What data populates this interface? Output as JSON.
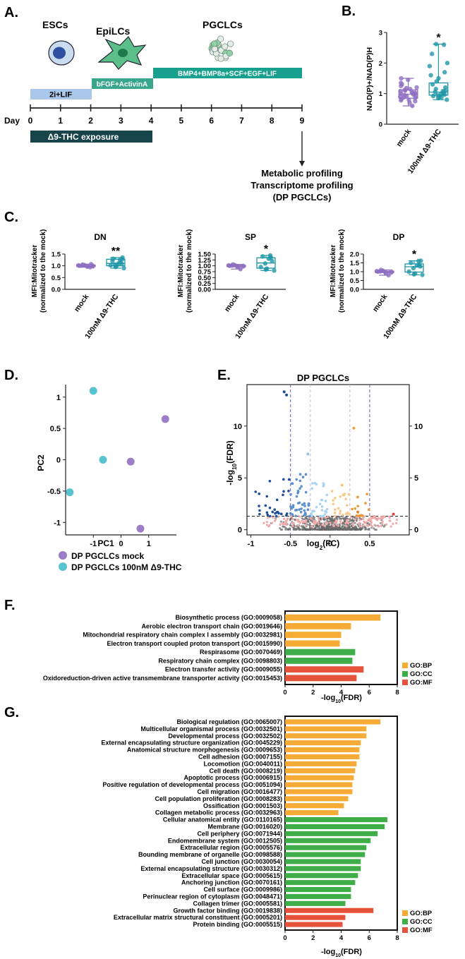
{
  "panelA": {
    "label": "A.",
    "stages": {
      "esc": "ESCs",
      "epilc": "EpiLCs",
      "pgclc": "PGCLCs"
    },
    "bars": {
      "lif": "2i+LIF",
      "bfgf": "bFGF+ActivinA",
      "bmp": "BMP4+BMP8a+SCF+EGF+LIF",
      "thc": "Δ9-THC exposure"
    },
    "day_label": "Day",
    "days": [
      "0",
      "1",
      "2",
      "3",
      "4",
      "5",
      "6",
      "7",
      "8",
      "9"
    ],
    "out1": "Metabolic profiling",
    "out2": "Transcriptome profiling",
    "out3": "(DP PGCLCs)",
    "colors": {
      "lif": "#a9c7e8",
      "bfgf": "#3aa58d",
      "bmp": "#18a08f",
      "thc": "#17434a"
    }
  },
  "panelB": {
    "label": "B.",
    "chart_data": {
      "type": "box",
      "ylabel": "NAD(P)+/NAD(P)H",
      "ylim": [
        0,
        3
      ],
      "yticks": [
        "0",
        "1",
        "2",
        "3"
      ],
      "categories": [
        "mock",
        "100nM Δ9-THC"
      ],
      "boxes": [
        {
          "whisker_low": 0.6,
          "q1": 0.85,
          "median": 0.98,
          "q3": 1.12,
          "whisker_high": 1.5
        },
        {
          "whisker_low": 0.8,
          "q1": 0.95,
          "median": 1.05,
          "q3": 1.35,
          "whisker_high": 2.62
        }
      ],
      "points": [
        [
          0.6,
          0.7,
          0.75,
          0.8,
          0.82,
          0.85,
          0.88,
          0.9,
          0.92,
          0.95,
          0.97,
          1.0,
          1.0,
          1.02,
          1.05,
          1.08,
          1.1,
          1.12,
          1.15,
          1.2,
          1.25,
          1.3,
          1.35,
          1.45,
          1.5,
          0.78,
          0.93,
          1.03,
          1.18
        ],
        [
          0.8,
          0.85,
          0.9,
          0.92,
          0.95,
          0.97,
          1.0,
          1.02,
          1.05,
          1.08,
          1.1,
          1.15,
          1.2,
          1.3,
          1.4,
          1.5,
          1.6,
          1.7,
          1.9,
          2.0,
          2.3,
          2.6,
          2.62,
          0.88
        ]
      ],
      "significance": [
        "",
        "*"
      ],
      "colors": [
        "#8e6fc1",
        "#1e96a6"
      ]
    }
  },
  "panelC": {
    "label": "C.",
    "ylabel1": "MFI:Mitotracker",
    "ylabel2": "(normalized to the mock)",
    "charts": [
      {
        "type": "box",
        "title": "DN",
        "ylim": [
          0,
          1.5
        ],
        "yticks": [
          "0.0",
          "0.5",
          "1.0",
          "1.5"
        ],
        "categories": [
          "mock",
          "100nM Δ9-THC"
        ],
        "boxes": [
          {
            "whisker_low": 0.94,
            "q1": 0.97,
            "median": 1.0,
            "q3": 1.03,
            "whisker_high": 1.07
          },
          {
            "whisker_low": 0.9,
            "q1": 1.0,
            "median": 1.1,
            "q3": 1.28,
            "whisker_high": 1.35
          }
        ],
        "points": [
          [
            0.94,
            0.96,
            0.98,
            0.99,
            1.0,
            1.0,
            1.01,
            1.02,
            1.03,
            1.05,
            1.07
          ],
          [
            0.9,
            0.95,
            1.0,
            1.02,
            1.05,
            1.08,
            1.1,
            1.15,
            1.2,
            1.25,
            1.28,
            1.3,
            1.35
          ]
        ],
        "significance": [
          "",
          "**"
        ]
      },
      {
        "type": "box",
        "title": "SP",
        "ylim": [
          0,
          1.5
        ],
        "yticks": [
          "0.00",
          "0.25",
          "0.50",
          "0.75",
          "1.00",
          "1.25",
          "1.50"
        ],
        "categories": [
          "mock",
          "100nM Δ9-THC"
        ],
        "boxes": [
          {
            "whisker_low": 0.86,
            "q1": 0.96,
            "median": 1.0,
            "q3": 1.02,
            "whisker_high": 1.06
          },
          {
            "whisker_low": 0.8,
            "q1": 0.9,
            "median": 1.12,
            "q3": 1.34,
            "whisker_high": 1.44
          }
        ],
        "points": [
          [
            0.86,
            0.95,
            0.97,
            0.98,
            1.0,
            1.0,
            1.01,
            1.02,
            1.03,
            1.06
          ],
          [
            0.8,
            0.84,
            0.88,
            0.95,
            1.1,
            1.2,
            1.3,
            1.35,
            1.4,
            1.44
          ]
        ],
        "significance": [
          "",
          "*"
        ]
      },
      {
        "type": "box",
        "title": "DP",
        "ylim": [
          0,
          2
        ],
        "yticks": [
          "0.0",
          "0.5",
          "1.0",
          "1.5",
          "2.0"
        ],
        "categories": [
          "mock",
          "100nM Δ9-THC"
        ],
        "boxes": [
          {
            "whisker_low": 0.8,
            "q1": 0.95,
            "median": 1.0,
            "q3": 1.03,
            "whisker_high": 1.1
          },
          {
            "whisker_low": 0.82,
            "q1": 0.98,
            "median": 1.28,
            "q3": 1.44,
            "whisker_high": 1.62
          }
        ],
        "points": [
          [
            0.8,
            0.9,
            0.95,
            0.98,
            1.0,
            1.01,
            1.02,
            1.03,
            1.05,
            1.1
          ],
          [
            0.82,
            0.85,
            0.9,
            1.0,
            1.2,
            1.3,
            1.35,
            1.4,
            1.5,
            1.6,
            1.62
          ]
        ],
        "significance": [
          "",
          "*"
        ]
      }
    ]
  },
  "panelD": {
    "label": "D.",
    "chart_data": {
      "type": "scatter",
      "xlabel": "PC1",
      "ylabel": "PC2",
      "xlim": [
        -2,
        2
      ],
      "ylim": [
        -1.2,
        1.2
      ],
      "xticks": [
        -1,
        0,
        1
      ],
      "xtick_labels": [
        "-1",
        "0",
        "1"
      ],
      "yticks": [
        -1,
        -0.5,
        0,
        0.5,
        1
      ],
      "ytick_labels": [
        "-1",
        "-0.5",
        "0",
        "0.5",
        "1"
      ],
      "series": [
        {
          "name": "DP PGCLCs mock",
          "color": "#9b7dc8",
          "x": [
            1.6,
            0.35,
            0.7
          ],
          "y": [
            0.65,
            -0.03,
            -1.1
          ]
        },
        {
          "name": "DP PGCLCs 100nM Δ9-THC",
          "color": "#57c3cf",
          "x": [
            -1.0,
            -0.65,
            -1.85
          ],
          "y": [
            1.1,
            0.0,
            -0.52
          ]
        }
      ]
    }
  },
  "panelE": {
    "label": "E.",
    "chart_data": {
      "type": "scatter",
      "title": "DP PGCLCs",
      "xlabel": "log2(FC)",
      "ylabel": "-log10(FDR)",
      "xlim": [
        -1.05,
        1.0
      ],
      "ylim": [
        -0.5,
        14
      ],
      "xticks": [
        -1,
        -0.5,
        0,
        0.5
      ],
      "xtick_labels": [
        "-1",
        "-0.5",
        "0",
        "0.5"
      ],
      "yticks": [
        0,
        5,
        10
      ],
      "ytick_labels": [
        "0",
        "5",
        "10"
      ],
      "threshold_y": 1.3,
      "vlines": [
        -0.5,
        -0.25,
        0.25,
        0.5
      ],
      "highlight": [
        {
          "x": -0.55,
          "y": 13.0,
          "c": "#1f4e9a"
        },
        {
          "x": -0.58,
          "y": 13.3,
          "c": "#1f4e9a"
        },
        {
          "x": 0.3,
          "y": 9.8,
          "c": "#f0a040"
        },
        {
          "x": 0.15,
          "y": 4.3,
          "c": "#f5c070"
        },
        {
          "x": -0.28,
          "y": 7.3,
          "c": "#8cc6e8"
        },
        {
          "x": 0.8,
          "y": 1.5,
          "c": "#e54030"
        },
        {
          "x": 0.35,
          "y": 1.7,
          "c": "#e08020"
        }
      ]
    }
  },
  "panelF": {
    "label": "F.",
    "chart_data": {
      "type": "bar",
      "orientation": "horizontal",
      "xlabel": "-log10(FDR)",
      "xlim": [
        0,
        8
      ],
      "xticks": [
        "0",
        "2",
        "4",
        "6",
        "8"
      ],
      "categories": [
        "Biosynthetic process (GO:0009058)",
        "Aerobic electron transport chain (GO:0019646)",
        "Mitochondrial respiratory chain complex I assembly (GO:0032981)",
        "Electron transport coupled proton transport (GO:0015990)",
        "Respirasome (GO:0070469)",
        "Respiratory chain complex (GO:0098803)",
        "Electron transfer activity (GO:0009055)",
        "Oxidoreduction-driven active transmembrane transporter activity (GO:0015453)"
      ],
      "values": [
        6.8,
        4.7,
        4.0,
        3.9,
        5.0,
        4.8,
        5.6,
        5.1
      ],
      "groups": [
        "BP",
        "BP",
        "BP",
        "BP",
        "CC",
        "CC",
        "MF",
        "MF"
      ]
    }
  },
  "panelG": {
    "label": "G.",
    "chart_data": {
      "type": "bar",
      "orientation": "horizontal",
      "xlabel": "-log10(FDR)",
      "xlim": [
        0,
        8
      ],
      "xticks": [
        "0",
        "2",
        "4",
        "6",
        "8"
      ],
      "categories": [
        "Biological regulation (GO:0065007)",
        "Multicellular organismal process (GO:0032501)",
        "Developmental process (GO:0032502)",
        "External encapsulating structure organization (GO:0045229)",
        "Anatomical structure morphogenesis (GO:0009653)",
        "Cell adhesion (GO:0007155)",
        "Locomotion (GO:0040011)",
        "Cell death (GO:0008219)",
        "Apoptotic process (GO:0006915)",
        "Positive regulation of developmental process (GO:0051094)",
        "Cell migration (GO:0016477)",
        "Cell population proliferation (GO:0008283)",
        "Ossification (GO:0001503)",
        "Collagen metabolic process (GO:0032963)",
        "Cellular anatomical entity (GO:0110165)",
        "Membrane (GO:0016020)",
        "Cell periphery (GO:0071944)",
        "Endomembrane system (GO:0012505)",
        "Extracellular region (GO:0005576)",
        "Bounding membrane of organelle (GO:0098588)",
        "Cell junction (GO:0030054)",
        "External encapsulating structure (GO:0030312)",
        "Extracellular space (GO:0005615)",
        "Anchoring junction (GO:0070161)",
        "Cell surface (GO:0009986)",
        "Perinuclear region of cytoplasm (GO:0048471)",
        "Collagen trimer (GO:0005581)",
        "Growth factor binding (GO:0019838)",
        "Extracellular matrix structural constituent (GO:0005201)",
        "Protein binding (GO:0005515)"
      ],
      "values": [
        6.8,
        5.8,
        5.8,
        5.4,
        5.3,
        5.3,
        5.1,
        5.0,
        4.9,
        4.8,
        4.8,
        4.5,
        4.2,
        3.8,
        7.3,
        7.1,
        6.6,
        6.1,
        5.8,
        5.7,
        5.4,
        5.4,
        5.2,
        5.0,
        4.7,
        4.7,
        4.3,
        6.3,
        4.3,
        4.1
      ],
      "groups": [
        "BP",
        "BP",
        "BP",
        "BP",
        "BP",
        "BP",
        "BP",
        "BP",
        "BP",
        "BP",
        "BP",
        "BP",
        "BP",
        "BP",
        "CC",
        "CC",
        "CC",
        "CC",
        "CC",
        "CC",
        "CC",
        "CC",
        "CC",
        "CC",
        "CC",
        "CC",
        "CC",
        "MF",
        "MF",
        "MF"
      ]
    }
  },
  "go_legend": [
    {
      "key": "BP",
      "label": "GO:BP",
      "color": "#f5ab35"
    },
    {
      "key": "CC",
      "label": "GO:CC",
      "color": "#3fae49"
    },
    {
      "key": "MF",
      "label": "GO:MF",
      "color": "#e5533a"
    }
  ]
}
